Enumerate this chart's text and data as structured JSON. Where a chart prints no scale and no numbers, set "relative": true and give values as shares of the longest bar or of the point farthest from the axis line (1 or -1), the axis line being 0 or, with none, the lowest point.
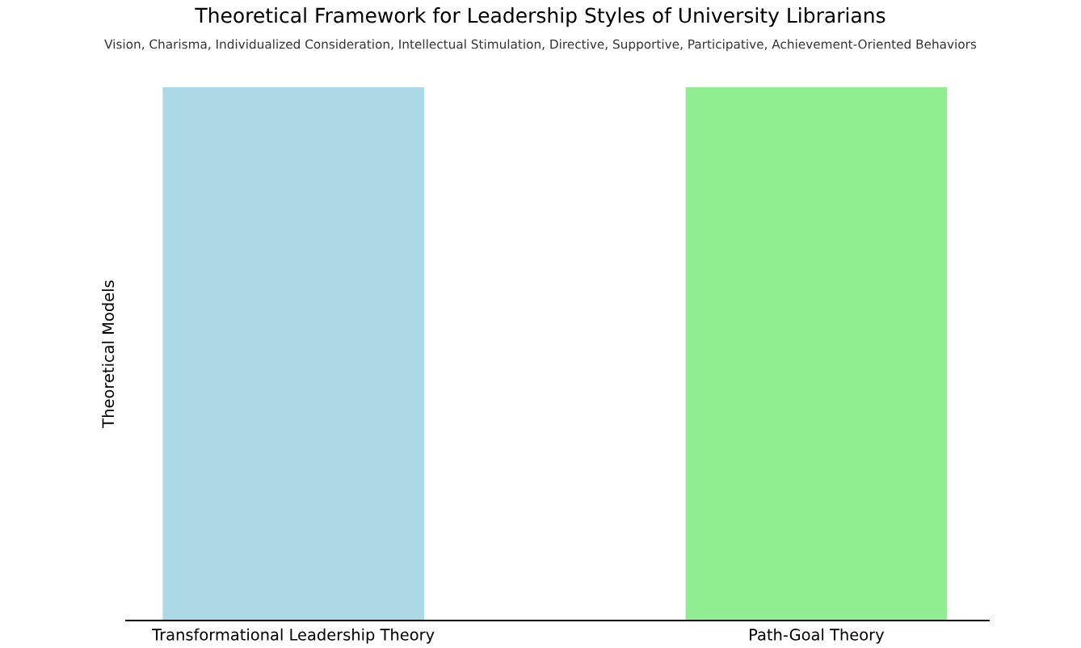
{
  "chart_data": {
    "type": "bar",
    "title": "Theoretical Framework for Leadership Styles of University Librarians",
    "subtitle": "Vision, Charisma, Individualized Consideration, Intellectual Stimulation, Directive, Supportive, Participative, Achievement-Oriented Behaviors",
    "ylabel": "Theoretical Models",
    "categories": [
      "Transformational Leadership Theory",
      "Path-Goal Theory"
    ],
    "values": [
      1,
      1
    ],
    "colors": [
      "#add8e6",
      "#90ee90"
    ],
    "relative": true,
    "grid": false,
    "legend": false
  }
}
